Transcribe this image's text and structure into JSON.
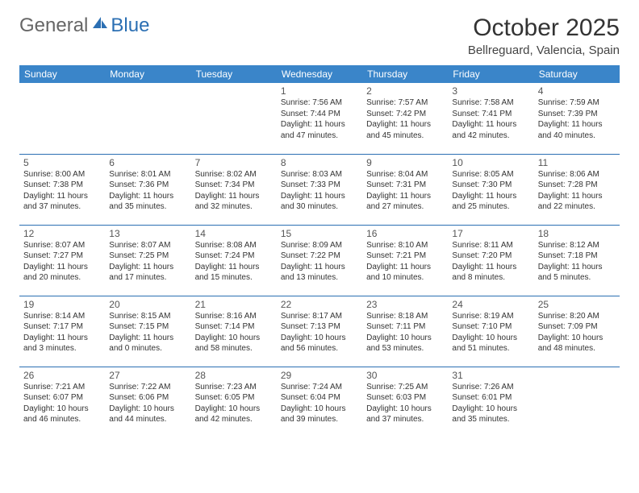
{
  "brand": {
    "part1": "General",
    "part2": "Blue"
  },
  "title": "October 2025",
  "location": "Bellreguard, Valencia, Spain",
  "colors": {
    "header_bg": "#3a85c9",
    "header_text": "#ffffff",
    "rule": "#2b6fb3",
    "text": "#333333",
    "brand_blue": "#2b6fb3"
  },
  "font": {
    "family": "Arial",
    "title_size_pt": 22,
    "location_size_pt": 11,
    "daynum_size_pt": 9,
    "body_size_pt": 7.5,
    "header_size_pt": 9
  },
  "day_labels": [
    "Sunday",
    "Monday",
    "Tuesday",
    "Wednesday",
    "Thursday",
    "Friday",
    "Saturday"
  ],
  "weeks": [
    [
      null,
      null,
      null,
      {
        "n": "1",
        "sunrise": "7:56 AM",
        "sunset": "7:44 PM",
        "daylight": "11 hours and 47 minutes."
      },
      {
        "n": "2",
        "sunrise": "7:57 AM",
        "sunset": "7:42 PM",
        "daylight": "11 hours and 45 minutes."
      },
      {
        "n": "3",
        "sunrise": "7:58 AM",
        "sunset": "7:41 PM",
        "daylight": "11 hours and 42 minutes."
      },
      {
        "n": "4",
        "sunrise": "7:59 AM",
        "sunset": "7:39 PM",
        "daylight": "11 hours and 40 minutes."
      }
    ],
    [
      {
        "n": "5",
        "sunrise": "8:00 AM",
        "sunset": "7:38 PM",
        "daylight": "11 hours and 37 minutes."
      },
      {
        "n": "6",
        "sunrise": "8:01 AM",
        "sunset": "7:36 PM",
        "daylight": "11 hours and 35 minutes."
      },
      {
        "n": "7",
        "sunrise": "8:02 AM",
        "sunset": "7:34 PM",
        "daylight": "11 hours and 32 minutes."
      },
      {
        "n": "8",
        "sunrise": "8:03 AM",
        "sunset": "7:33 PM",
        "daylight": "11 hours and 30 minutes."
      },
      {
        "n": "9",
        "sunrise": "8:04 AM",
        "sunset": "7:31 PM",
        "daylight": "11 hours and 27 minutes."
      },
      {
        "n": "10",
        "sunrise": "8:05 AM",
        "sunset": "7:30 PM",
        "daylight": "11 hours and 25 minutes."
      },
      {
        "n": "11",
        "sunrise": "8:06 AM",
        "sunset": "7:28 PM",
        "daylight": "11 hours and 22 minutes."
      }
    ],
    [
      {
        "n": "12",
        "sunrise": "8:07 AM",
        "sunset": "7:27 PM",
        "daylight": "11 hours and 20 minutes."
      },
      {
        "n": "13",
        "sunrise": "8:07 AM",
        "sunset": "7:25 PM",
        "daylight": "11 hours and 17 minutes."
      },
      {
        "n": "14",
        "sunrise": "8:08 AM",
        "sunset": "7:24 PM",
        "daylight": "11 hours and 15 minutes."
      },
      {
        "n": "15",
        "sunrise": "8:09 AM",
        "sunset": "7:22 PM",
        "daylight": "11 hours and 13 minutes."
      },
      {
        "n": "16",
        "sunrise": "8:10 AM",
        "sunset": "7:21 PM",
        "daylight": "11 hours and 10 minutes."
      },
      {
        "n": "17",
        "sunrise": "8:11 AM",
        "sunset": "7:20 PM",
        "daylight": "11 hours and 8 minutes."
      },
      {
        "n": "18",
        "sunrise": "8:12 AM",
        "sunset": "7:18 PM",
        "daylight": "11 hours and 5 minutes."
      }
    ],
    [
      {
        "n": "19",
        "sunrise": "8:14 AM",
        "sunset": "7:17 PM",
        "daylight": "11 hours and 3 minutes."
      },
      {
        "n": "20",
        "sunrise": "8:15 AM",
        "sunset": "7:15 PM",
        "daylight": "11 hours and 0 minutes."
      },
      {
        "n": "21",
        "sunrise": "8:16 AM",
        "sunset": "7:14 PM",
        "daylight": "10 hours and 58 minutes."
      },
      {
        "n": "22",
        "sunrise": "8:17 AM",
        "sunset": "7:13 PM",
        "daylight": "10 hours and 56 minutes."
      },
      {
        "n": "23",
        "sunrise": "8:18 AM",
        "sunset": "7:11 PM",
        "daylight": "10 hours and 53 minutes."
      },
      {
        "n": "24",
        "sunrise": "8:19 AM",
        "sunset": "7:10 PM",
        "daylight": "10 hours and 51 minutes."
      },
      {
        "n": "25",
        "sunrise": "8:20 AM",
        "sunset": "7:09 PM",
        "daylight": "10 hours and 48 minutes."
      }
    ],
    [
      {
        "n": "26",
        "sunrise": "7:21 AM",
        "sunset": "6:07 PM",
        "daylight": "10 hours and 46 minutes."
      },
      {
        "n": "27",
        "sunrise": "7:22 AM",
        "sunset": "6:06 PM",
        "daylight": "10 hours and 44 minutes."
      },
      {
        "n": "28",
        "sunrise": "7:23 AM",
        "sunset": "6:05 PM",
        "daylight": "10 hours and 42 minutes."
      },
      {
        "n": "29",
        "sunrise": "7:24 AM",
        "sunset": "6:04 PM",
        "daylight": "10 hours and 39 minutes."
      },
      {
        "n": "30",
        "sunrise": "7:25 AM",
        "sunset": "6:03 PM",
        "daylight": "10 hours and 37 minutes."
      },
      {
        "n": "31",
        "sunrise": "7:26 AM",
        "sunset": "6:01 PM",
        "daylight": "10 hours and 35 minutes."
      },
      null
    ]
  ],
  "labels": {
    "sunrise": "Sunrise: ",
    "sunset": "Sunset: ",
    "daylight": "Daylight: "
  }
}
